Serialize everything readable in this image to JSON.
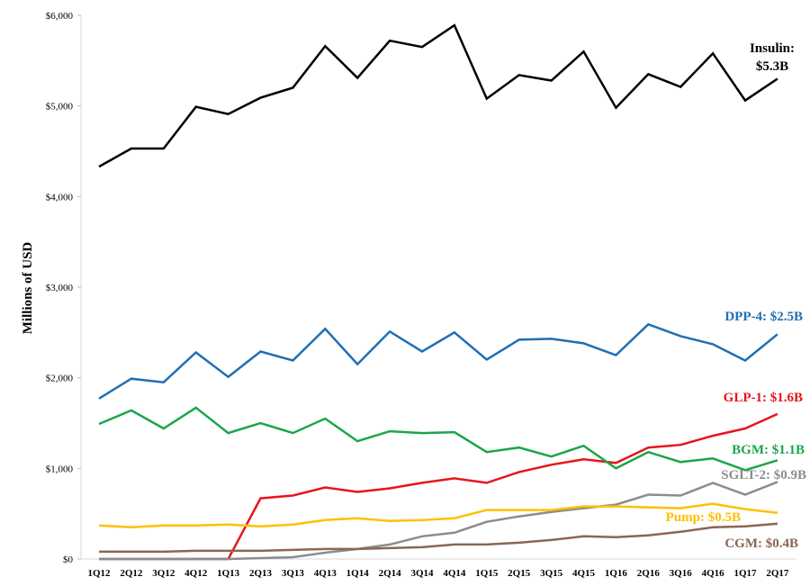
{
  "chart_data": {
    "type": "line",
    "title": "",
    "xlabel": "",
    "ylabel": "Millions of USD",
    "ylim": [
      0,
      6000
    ],
    "yticks": [
      0,
      1000,
      2000,
      3000,
      4000,
      5000,
      6000
    ],
    "ytick_labels": [
      "$0",
      "$1,000",
      "$2,000",
      "$3,000",
      "$4,000",
      "$5,000",
      "$6,000"
    ],
    "grid": false,
    "categories": [
      "1Q12",
      "2Q12",
      "3Q12",
      "4Q12",
      "1Q13",
      "2Q13",
      "3Q13",
      "4Q13",
      "1Q14",
      "2Q14",
      "3Q14",
      "4Q14",
      "1Q15",
      "2Q15",
      "3Q15",
      "4Q15",
      "1Q16",
      "2Q16",
      "3Q16",
      "4Q16",
      "1Q17",
      "2Q17"
    ],
    "series": [
      {
        "name": "Insulin",
        "label_line1": "Insulin:",
        "label_line2": "$5.3B",
        "color": "#000000",
        "values": [
          4330,
          4530,
          4530,
          4990,
          4910,
          5090,
          5200,
          5660,
          5310,
          5720,
          5650,
          5890,
          5080,
          5340,
          5280,
          5600,
          4980,
          5350,
          5210,
          5580,
          5060,
          5300
        ]
      },
      {
        "name": "DPP-4",
        "label": "DPP-4: $2.5B",
        "color": "#1f6fb4",
        "values": [
          1770,
          1990,
          1950,
          2280,
          2010,
          2290,
          2190,
          2540,
          2150,
          2510,
          2290,
          2500,
          2200,
          2420,
          2430,
          2380,
          2250,
          2590,
          2460,
          2370,
          2190,
          2480
        ]
      },
      {
        "name": "GLP-1",
        "label": "GLP-1: $1.6B",
        "color": "#e8141b",
        "values": [
          0,
          0,
          0,
          0,
          0,
          670,
          700,
          790,
          740,
          780,
          840,
          890,
          840,
          960,
          1040,
          1100,
          1060,
          1230,
          1260,
          1360,
          1440,
          1600
        ]
      },
      {
        "name": "BGM",
        "label": "BGM: $1.1B",
        "color": "#1aa64a",
        "values": [
          1490,
          1640,
          1440,
          1670,
          1390,
          1500,
          1390,
          1550,
          1300,
          1410,
          1390,
          1400,
          1180,
          1230,
          1130,
          1250,
          1000,
          1180,
          1070,
          1110,
          980,
          1090
        ]
      },
      {
        "name": "SGLT-2",
        "label": "SGLT-2: $0.9B",
        "color": "#8c8c8c",
        "values": [
          0,
          0,
          0,
          0,
          0,
          10,
          20,
          70,
          110,
          160,
          250,
          290,
          410,
          470,
          520,
          560,
          600,
          710,
          700,
          840,
          710,
          850
        ]
      },
      {
        "name": "Pump",
        "label": "Pump: $0.5B",
        "color": "#ffc000",
        "values": [
          370,
          350,
          370,
          370,
          380,
          360,
          380,
          430,
          450,
          420,
          430,
          450,
          540,
          540,
          540,
          580,
          580,
          570,
          560,
          610,
          550,
          510
        ]
      },
      {
        "name": "CGM",
        "label": "CGM: $0.4B",
        "color": "#8b6651",
        "values": [
          80,
          80,
          80,
          90,
          90,
          90,
          100,
          110,
          110,
          120,
          130,
          160,
          160,
          180,
          210,
          250,
          240,
          260,
          300,
          350,
          360,
          390
        ]
      }
    ]
  }
}
